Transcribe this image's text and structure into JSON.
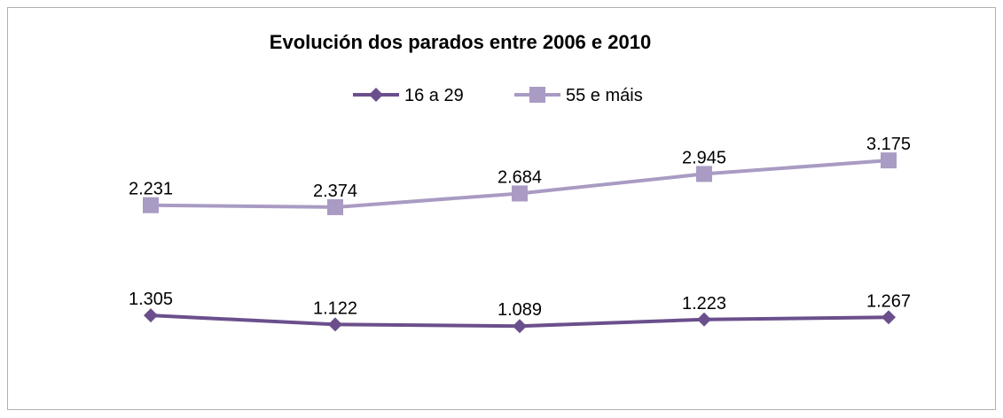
{
  "chart_data": {
    "type": "line",
    "stacked": true,
    "title": "Evolución dos parados entre 2006 e 2010",
    "categories": [
      null,
      null,
      null,
      null,
      null
    ],
    "series": [
      {
        "name": "16 a 29",
        "color": "#6b4f8c",
        "marker": "diamond",
        "values": [
          1305,
          1122,
          1089,
          1223,
          1267
        ],
        "value_labels": [
          "1.305",
          "1.122",
          "1.089",
          "1.223",
          "1.267"
        ]
      },
      {
        "name": "55 e máis",
        "color": "#a99bc3",
        "marker": "square",
        "values": [
          2231,
          2374,
          2684,
          2945,
          3175
        ],
        "value_labels": [
          "2.231",
          "2.374",
          "2.684",
          "2.945",
          "3.175"
        ]
      }
    ],
    "ylim": [
      0,
      5000
    ],
    "legend": "top"
  }
}
